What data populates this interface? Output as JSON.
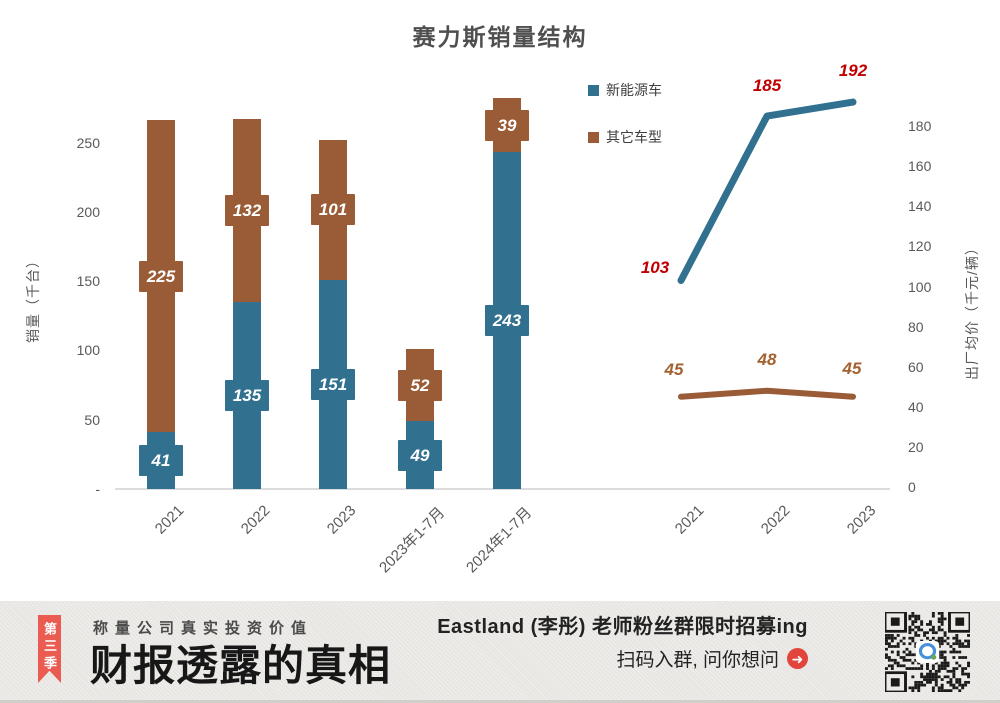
{
  "title": "赛力斯销量结构",
  "legend": [
    {
      "label": "新能源车",
      "color": "#31708F"
    },
    {
      "label": "其它车型",
      "color": "#9A5C36"
    }
  ],
  "chart_data": [
    {
      "type": "bar",
      "stacked": true,
      "title": "赛力斯销量结构",
      "categories": [
        "2021",
        "2022",
        "2023",
        "2023年1-7月",
        "2024年1-7月"
      ],
      "series": [
        {
          "name": "新能源车",
          "color": "#31708F",
          "values": [
            41,
            135,
            151,
            49,
            243
          ]
        },
        {
          "name": "其它车型",
          "color": "#9A5C36",
          "values": [
            225,
            132,
            101,
            52,
            39
          ]
        }
      ],
      "ylabel": "销量（千台）",
      "yticks": [
        250,
        200,
        150,
        100,
        50,
        0
      ],
      "zero_tick_label": "-",
      "ylim": [
        0,
        270
      ],
      "grid": false,
      "data_label_style": "white italic on series-color badge"
    },
    {
      "type": "line",
      "categories": [
        "2021",
        "2022",
        "2023"
      ],
      "series": [
        {
          "name": "新能源车",
          "color": "#31708F",
          "label_color": "#C00000",
          "values": [
            103,
            185,
            192
          ]
        },
        {
          "name": "其它车型",
          "color": "#9A5C36",
          "label_color": "#A4612F",
          "values": [
            45,
            48,
            45
          ]
        }
      ],
      "ylabel": "出厂均价（千元/辆）",
      "yticks": [
        180,
        160,
        140,
        120,
        100,
        80,
        60,
        40,
        20,
        0
      ],
      "ylim": [
        0,
        195
      ],
      "grid": false,
      "legend_position": "top-center-shared"
    }
  ],
  "banner": {
    "ribbon_label": "第三季",
    "tagline": "称量公司真实投资价值",
    "title": "财报透露的真相",
    "promo_line1": "Eastland (李彤) 老师粉丝群限时招募ing",
    "promo_line2": "扫码入群, 问你想问",
    "arrow_glyph": "➜",
    "qr_label": "qr-code"
  },
  "colors": {
    "nev_blue": "#31708F",
    "other_brown": "#9A5C36",
    "red_label": "#C00000",
    "brown_label": "#A4612F",
    "axis_text": "#595959",
    "axis_line": "#dcdcdc",
    "banner_bg": "#e8e6e2",
    "ribbon_red": "#ea5b52",
    "arrow_red": "#e2453c"
  }
}
